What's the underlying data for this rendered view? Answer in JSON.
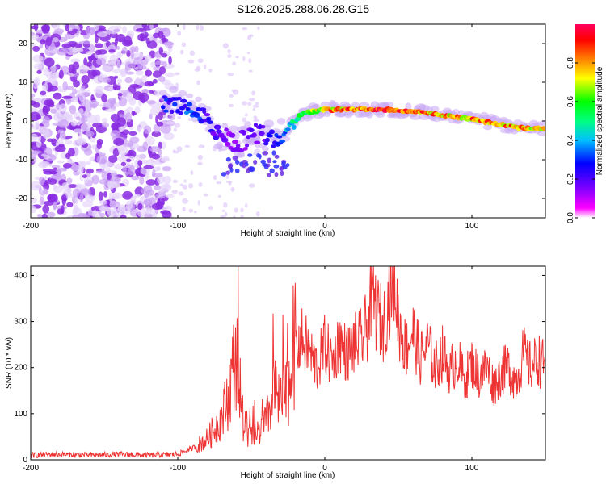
{
  "title": "S126.2025.288.06.28.G15",
  "chart_data": [
    {
      "type": "heatmap",
      "title": "S126.2025.288.06.28.G15",
      "xlabel": "Height of straight line (km)",
      "ylabel": "Frequency (Hz)",
      "xlim": [
        -200,
        150
      ],
      "ylim": [
        -25,
        25
      ],
      "xticks": [
        -200,
        -100,
        0,
        100
      ],
      "yticks": [
        -20,
        -10,
        0,
        10,
        20
      ],
      "colorbar": {
        "label": "Normalized spectral amplitude",
        "range": [
          0,
          1
        ],
        "ticks": [
          "0.0",
          "0.2",
          "0.4",
          "0.6",
          "0.8"
        ],
        "colormap": [
          "#ffffff",
          "#ff00ff",
          "#8000ff",
          "#0000ff",
          "#00c0ff",
          "#00ff80",
          "#00ff00",
          "#ffff00",
          "#ff8000",
          "#ff0000",
          "#ff0060"
        ]
      },
      "ridge": {
        "x": [
          -110,
          -90,
          -75,
          -60,
          -45,
          -35,
          -25,
          -15,
          0,
          20,
          40,
          60,
          80,
          100,
          120,
          140,
          150
        ],
        "y": [
          5,
          3,
          -2,
          -6,
          -3,
          -5,
          -2,
          2,
          3,
          3,
          3,
          2.5,
          1.5,
          0.5,
          -1,
          -2,
          -2
        ],
        "amplitude": [
          0.3,
          0.35,
          0.25,
          0.2,
          0.25,
          0.3,
          0.45,
          0.6,
          0.8,
          0.9,
          0.95,
          0.9,
          0.8,
          0.85,
          0.85,
          0.8,
          0.75
        ]
      }
    },
    {
      "type": "line",
      "xlabel": "Height of straight line (km)",
      "ylabel": "SNR (10 * v/v)",
      "xlim": [
        -200,
        150
      ],
      "ylim": [
        0,
        420
      ],
      "xticks": [
        -200,
        -100,
        0,
        100
      ],
      "yticks": [
        0,
        100,
        200,
        300,
        400
      ],
      "series": [
        {
          "name": "SNR",
          "color": "#ee3333",
          "x": [
            -200,
            -180,
            -160,
            -140,
            -120,
            -100,
            -90,
            -80,
            -70,
            -65,
            -60,
            -58,
            -55,
            -50,
            -45,
            -40,
            -35,
            -30,
            -25,
            -20,
            -15,
            -10,
            -5,
            0,
            5,
            10,
            15,
            20,
            25,
            30,
            32,
            35,
            40,
            45,
            47,
            50,
            55,
            60,
            65,
            70,
            75,
            80,
            85,
            90,
            95,
            100,
            105,
            110,
            115,
            120,
            125,
            130,
            135,
            140,
            145,
            150
          ],
          "y": [
            10,
            12,
            10,
            12,
            10,
            12,
            25,
            45,
            90,
            150,
            240,
            130,
            60,
            50,
            55,
            80,
            140,
            120,
            150,
            250,
            260,
            230,
            200,
            250,
            210,
            260,
            230,
            250,
            260,
            300,
            380,
            320,
            290,
            380,
            410,
            300,
            240,
            280,
            220,
            250,
            200,
            230,
            190,
            220,
            170,
            210,
            180,
            200,
            160,
            190,
            200,
            170,
            230,
            200,
            220,
            200
          ]
        }
      ]
    }
  ]
}
